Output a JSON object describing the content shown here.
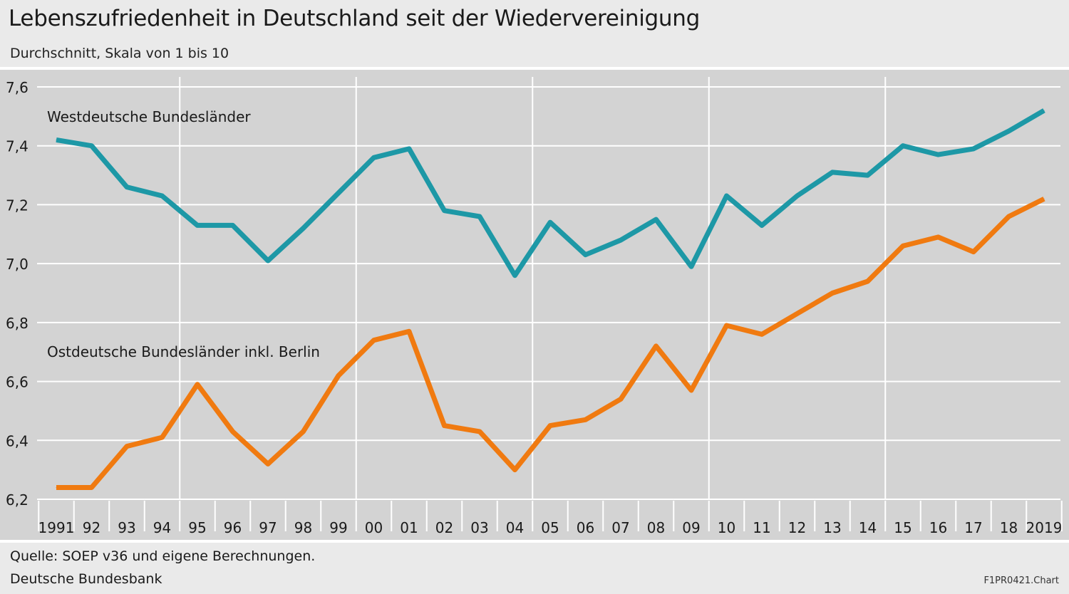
{
  "header": {
    "title": "Lebenszufriedenheit in Deutschland seit der Wiedervereinigung",
    "subtitle": "Durchschnitt, Skala von 1 bis 10"
  },
  "footer": {
    "source": "Quelle: SOEP v36 und eigene Berechnungen.",
    "publisher": "Deutsche Bundesbank",
    "chart_id": "F1PR0421.Chart"
  },
  "colors": {
    "west": "#1d98a6",
    "east": "#f07a10",
    "plot_background": "#d3d3d3",
    "grid": "#ffffff"
  },
  "chart_data": {
    "type": "line",
    "title": "Lebenszufriedenheit in Deutschland seit der Wiedervereinigung",
    "subtitle": "Durchschnitt, Skala von 1 bis 10",
    "categories": [
      "1991",
      "92",
      "93",
      "94",
      "95",
      "96",
      "97",
      "98",
      "99",
      "00",
      "01",
      "02",
      "03",
      "04",
      "05",
      "06",
      "07",
      "08",
      "09",
      "10",
      "11",
      "12",
      "13",
      "14",
      "15",
      "16",
      "17",
      "18",
      "2019"
    ],
    "ylim": [
      6.2,
      7.6
    ],
    "yticks": [
      "6,2",
      "6,4",
      "6,6",
      "6,8",
      "7,0",
      "7,2",
      "7,4",
      "7,6"
    ],
    "grid": true,
    "series": [
      {
        "name": "Westdeutsche Bundesländer",
        "values": [
          7.42,
          7.4,
          7.26,
          7.23,
          7.13,
          7.13,
          7.01,
          7.12,
          7.24,
          7.36,
          7.39,
          7.18,
          7.16,
          6.96,
          7.14,
          7.03,
          7.08,
          7.15,
          6.99,
          7.23,
          7.13,
          7.23,
          7.31,
          7.3,
          7.4,
          7.37,
          7.39,
          7.45,
          7.52
        ]
      },
      {
        "name": "Ostdeutsche Bundesländer inkl. Berlin",
        "values": [
          6.24,
          6.24,
          6.38,
          6.41,
          6.59,
          6.43,
          6.32,
          6.43,
          6.62,
          6.74,
          6.77,
          6.45,
          6.43,
          6.3,
          6.45,
          6.47,
          6.54,
          6.72,
          6.57,
          6.79,
          6.76,
          6.83,
          6.9,
          6.94,
          7.06,
          7.09,
          7.04,
          7.16,
          7.22
        ]
      }
    ]
  }
}
